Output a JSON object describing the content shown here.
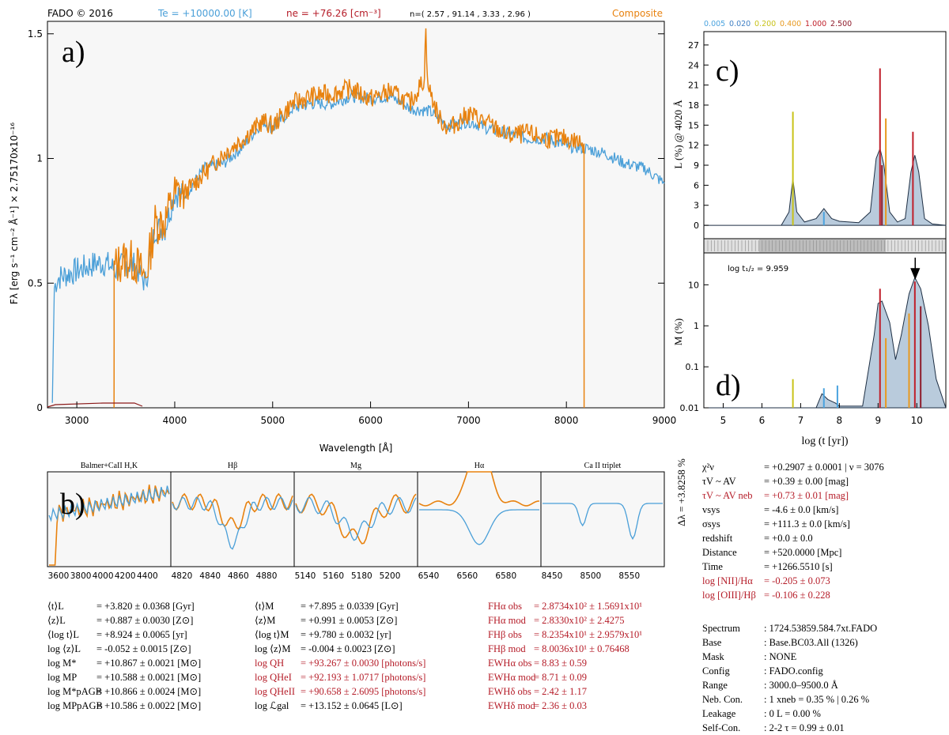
{
  "header": {
    "title": "FADO © 2016",
    "te": "Te = +10000.00 [K]",
    "ne": "ne = +76.26 [cm⁻³]",
    "n_vals": "n=( 2.57 , 91.14 , 3.33 , 2.96 )",
    "composite": "Composite"
  },
  "colors": {
    "obs": "#e8820f",
    "model": "#4a9fd8",
    "red": "#b51c28",
    "olive": "#7c8a1e",
    "fill": "#b9cbdc",
    "band": "#bdbdbd",
    "panel_bg": "#f7f7f7"
  },
  "legend_z": [
    "0.005",
    "0.020",
    "0.200",
    "0.400",
    "1.000",
    "2.500"
  ],
  "legend_z_colors": [
    "#4aa3df",
    "#3f7fc4",
    "#c8c218",
    "#e89a20",
    "#c01f2a",
    "#8e1b2b"
  ],
  "chart_data": [
    {
      "id": "a",
      "type": "line",
      "panel_label": "a)",
      "xlabel": "Wavelength [Å]",
      "ylabel": "Fλ [erg s⁻¹ cm⁻² Å⁻¹] × 2.75170x10⁻¹⁶",
      "xlim": [
        2700,
        9000
      ],
      "ylim": [
        0,
        1.55
      ],
      "xticks": [
        "3000",
        "4000",
        "5000",
        "6000",
        "7000",
        "8000",
        "9000"
      ],
      "yticks": [
        "0",
        "0.5",
        "1",
        "1.5"
      ],
      "series": [
        {
          "name": "model",
          "x": [
            2750,
            2770,
            2800,
            3000,
            3200,
            3300,
            3400,
            3500,
            3600,
            3700,
            3800,
            3900,
            4000,
            4100,
            4300,
            4500,
            4700,
            4900,
            5000,
            5200,
            5400,
            5600,
            5800,
            6000,
            6200,
            6400,
            6600,
            6800,
            7000,
            7200,
            7400,
            7600,
            7800,
            8000,
            8200,
            8400,
            8600,
            8800,
            9000
          ],
          "y": [
            0.02,
            0.48,
            0.52,
            0.55,
            0.58,
            0.58,
            0.55,
            0.58,
            0.57,
            0.5,
            0.72,
            0.72,
            0.86,
            0.85,
            0.96,
            0.98,
            1.05,
            1.15,
            1.12,
            1.2,
            1.22,
            1.22,
            1.25,
            1.24,
            1.25,
            1.2,
            1.19,
            1.13,
            1.15,
            1.12,
            1.1,
            1.08,
            1.08,
            1.05,
            1.04,
            1.02,
            0.98,
            0.96,
            0.9
          ]
        },
        {
          "name": "observed",
          "x": [
            3380,
            3381,
            3400,
            3500,
            3600,
            3700,
            3800,
            3900,
            4000,
            4100,
            4300,
            4500,
            4700,
            4900,
            5000,
            5200,
            5400,
            5600,
            5800,
            6000,
            6200,
            6400,
            6550,
            6565,
            6580,
            6700,
            6800,
            7000,
            7200,
            7400,
            7600,
            7800,
            8000,
            8180,
            8181
          ],
          "y": [
            0.0,
            0.55,
            0.57,
            0.6,
            0.58,
            0.52,
            0.74,
            0.75,
            0.86,
            0.86,
            0.94,
            1.02,
            1.08,
            1.15,
            1.13,
            1.22,
            1.25,
            1.26,
            1.28,
            1.24,
            1.27,
            1.22,
            1.32,
            1.55,
            1.3,
            1.16,
            1.12,
            1.18,
            1.14,
            1.09,
            1.1,
            1.08,
            1.08,
            1.06,
            0.0
          ]
        }
      ]
    },
    {
      "id": "b",
      "type": "line",
      "panel_label": "b)",
      "windows": [
        {
          "title": "Balmer+CaII H,K",
          "xticks": [
            "3600",
            "3800",
            "4000",
            "4200",
            "4400"
          ]
        },
        {
          "title": "Hβ",
          "xticks": [
            "4820",
            "4840",
            "4860",
            "4880"
          ]
        },
        {
          "title": "Mg",
          "xticks": [
            "5140",
            "5160",
            "5180",
            "5200"
          ]
        },
        {
          "title": "Hα",
          "xticks": [
            "6540",
            "6560",
            "6580"
          ]
        },
        {
          "title": "Ca II triplet",
          "xticks": [
            "8450",
            "8500",
            "8550"
          ]
        }
      ]
    },
    {
      "id": "c",
      "type": "area",
      "panel_label": "c)",
      "ylabel": "L (%) @ 4020 Å",
      "yticks": [
        "0",
        "3",
        "6",
        "9",
        "12",
        "15",
        "18",
        "21",
        "24",
        "27"
      ],
      "ylim": [
        -2,
        29
      ],
      "xlim": [
        4.5,
        10.75
      ],
      "envelope": {
        "x": [
          4.5,
          6.5,
          6.7,
          6.8,
          6.9,
          7.1,
          7.4,
          7.6,
          7.8,
          8.0,
          8.5,
          8.8,
          8.95,
          9.05,
          9.15,
          9.3,
          9.5,
          9.7,
          9.85,
          9.95,
          10.05,
          10.2,
          10.4,
          10.75
        ],
        "y": [
          0,
          0,
          2,
          7,
          2,
          0.5,
          1,
          2.5,
          1,
          0.6,
          0.4,
          2,
          10,
          11.5,
          9,
          2,
          0.5,
          1,
          8,
          10.5,
          8,
          1,
          0.2,
          0
        ]
      },
      "bars": [
        {
          "x": 6.8,
          "h": 17,
          "c": "#c8c218"
        },
        {
          "x": 9.05,
          "h": 23.5,
          "c": "#c01f2a"
        },
        {
          "x": 9.2,
          "h": 16,
          "c": "#e89a20"
        },
        {
          "x": 9.9,
          "h": 14,
          "c": "#c01f2a"
        },
        {
          "x": 7.6,
          "h": 2,
          "c": "#4aa3df"
        },
        {
          "x": 9.1,
          "h": 9,
          "c": "#8e1b2b"
        }
      ]
    },
    {
      "id": "d",
      "type": "area",
      "panel_label": "d)",
      "ylabel": "M (%)",
      "xlabel": "log (t [yr])",
      "annotation": "log t₁/₂ = 9.959",
      "xticks": [
        "5",
        "6",
        "7",
        "8",
        "9",
        "10"
      ],
      "xlim": [
        4.5,
        10.75
      ],
      "yticks": [
        "0.01",
        "0.1",
        "1",
        "10"
      ],
      "ylim": [
        0.01,
        60
      ],
      "envelope": {
        "x": [
          4.5,
          7.4,
          7.55,
          7.7,
          7.9,
          8.0,
          8.6,
          8.9,
          9.0,
          9.1,
          9.3,
          9.45,
          9.6,
          9.8,
          9.95,
          10.1,
          10.3,
          10.5,
          10.75
        ],
        "y": [
          0.01,
          0.01,
          0.022,
          0.016,
          0.013,
          0.011,
          0.011,
          0.6,
          3.5,
          4,
          1.2,
          0.15,
          0.6,
          6,
          15,
          8,
          1,
          0.05,
          0.01
        ]
      },
      "bars": [
        {
          "x": 6.8,
          "h": 0.05,
          "c": "#c8c218"
        },
        {
          "x": 7.6,
          "h": 0.03,
          "c": "#4aa3df"
        },
        {
          "x": 7.95,
          "h": 0.035,
          "c": "#4aa3df"
        },
        {
          "x": 9.05,
          "h": 8,
          "c": "#c01f2a"
        },
        {
          "x": 9.95,
          "h": 12,
          "c": "#c01f2a"
        },
        {
          "x": 9.2,
          "h": 0.5,
          "c": "#e89a20"
        },
        {
          "x": 9.8,
          "h": 2,
          "c": "#e89a20"
        },
        {
          "x": 10.1,
          "h": 3,
          "c": "#8e1b2b"
        }
      ]
    }
  ],
  "delta_label": "Δλ = +3.8258 %",
  "stats_left": [
    {
      "k": "⟨t⟩L",
      "v": "= +3.820 ± 0.0368 [Gyr]"
    },
    {
      "k": "⟨z⟩L",
      "v": "= +0.887 ± 0.0030 [Z⊙]"
    },
    {
      "k": "⟨log t⟩L",
      "v": "= +8.924 ± 0.0065 [yr]"
    },
    {
      "k": "log ⟨z⟩L",
      "v": "= -0.052 ± 0.0015 [Z⊙]"
    },
    {
      "k": "log M*",
      "v": "= +10.867 ± 0.0021 [M⊙]"
    },
    {
      "k": "log MP",
      "v": "= +10.588 ± 0.0021 [M⊙]"
    },
    {
      "k": "log M*pAGB",
      "v": "= +10.866 ± 0.0024 [M⊙]"
    },
    {
      "k": "log MPpAGB",
      "v": "= +10.586 ± 0.0022 [M⊙]"
    }
  ],
  "stats_mid": [
    {
      "k": "⟨t⟩M",
      "v": "= +7.895 ± 0.0339 [Gyr]",
      "red": false
    },
    {
      "k": "⟨z⟩M",
      "v": "= +0.991 ± 0.0053 [Z⊙]",
      "red": false
    },
    {
      "k": "⟨log t⟩M",
      "v": "= +9.780 ± 0.0032 [yr]",
      "red": false
    },
    {
      "k": "log ⟨z⟩M",
      "v": "= -0.004 ± 0.0023 [Z⊙]",
      "red": false
    },
    {
      "k": "log QH",
      "v": "= +93.267 ± 0.0030 [photons/s]",
      "red": true
    },
    {
      "k": "log QHeI",
      "v": "= +92.193 ± 1.0717 [photons/s]",
      "red": true
    },
    {
      "k": "log QHeII",
      "v": "= +90.658 ± 2.6095 [photons/s]",
      "red": true
    },
    {
      "k": "log ℒgal",
      "v": "= +13.152 ± 0.0645 [L⊙]",
      "red": false
    }
  ],
  "stats_right": [
    {
      "k": "FHα obs",
      "v": "= 2.8734x10² ± 1.5691x10¹"
    },
    {
      "k": "FHα mod",
      "v": "= 2.8330x10² ± 2.4275"
    },
    {
      "k": "FHβ obs",
      "v": "= 8.2354x10¹ ± 2.9579x10¹"
    },
    {
      "k": "FHβ mod",
      "v": "= 8.0036x10¹ ± 0.76468"
    },
    {
      "k": "EWHα obs",
      "v": "= 8.83 ± 0.59"
    },
    {
      "k": "EWHα mod",
      "v": "= 8.71 ± 0.09"
    },
    {
      "k": "EWHδ obs",
      "v": "= 2.42 ± 1.17"
    },
    {
      "k": "EWHδ mod",
      "v": "= 2.36 ± 0.03"
    }
  ],
  "fit_params": [
    {
      "k": "χ²ν",
      "v": "= +0.2907 ± 0.0001 | ν = 3076",
      "red": false
    },
    {
      "k": "τV ~ AV",
      "v": "= +0.39 ± 0.00 [mag]",
      "red": false
    },
    {
      "k": "τV ~ AV neb",
      "v": "= +0.73 ± 0.01 [mag]",
      "red": true
    },
    {
      "k": "vsys",
      "v": "= -4.6 ± 0.0 [km/s]",
      "red": false
    },
    {
      "k": "σsys",
      "v": "= +111.3 ± 0.0 [km/s]",
      "red": false
    },
    {
      "k": "redshift",
      "v": "= +0.0 ± 0.0",
      "red": false
    },
    {
      "k": "Distance",
      "v": "= +520.0000 [Mpc]",
      "red": false
    },
    {
      "k": "Time",
      "v": "= +1266.5510 [s]",
      "red": false
    },
    {
      "k": "log [NII]/Hα",
      "v": "= -0.205 ± 0.073",
      "red": true
    },
    {
      "k": "log [OIII]/Hβ",
      "v": "= -0.106 ± 0.228",
      "red": true
    }
  ],
  "config": [
    {
      "k": "Spectrum",
      "v": ": 1724.53859.584.7xt.FADO"
    },
    {
      "k": "Base",
      "v": ": Base.BC03.All (1326)"
    },
    {
      "k": "Mask",
      "v": ": NONE"
    },
    {
      "k": "Config",
      "v": ": FADO.config"
    },
    {
      "k": "Range",
      "v": ": 3000.0–9500.0 Å"
    },
    {
      "k": "Neb. Con.",
      "v": ": 1 xneb = 0.35 % | 0.26 %"
    },
    {
      "k": "Leakage",
      "v": ": 0 L = 0.00 %"
    },
    {
      "k": "Self-Con.",
      "v": ": 2-2 τ = 0.99 ± 0.01"
    }
  ]
}
